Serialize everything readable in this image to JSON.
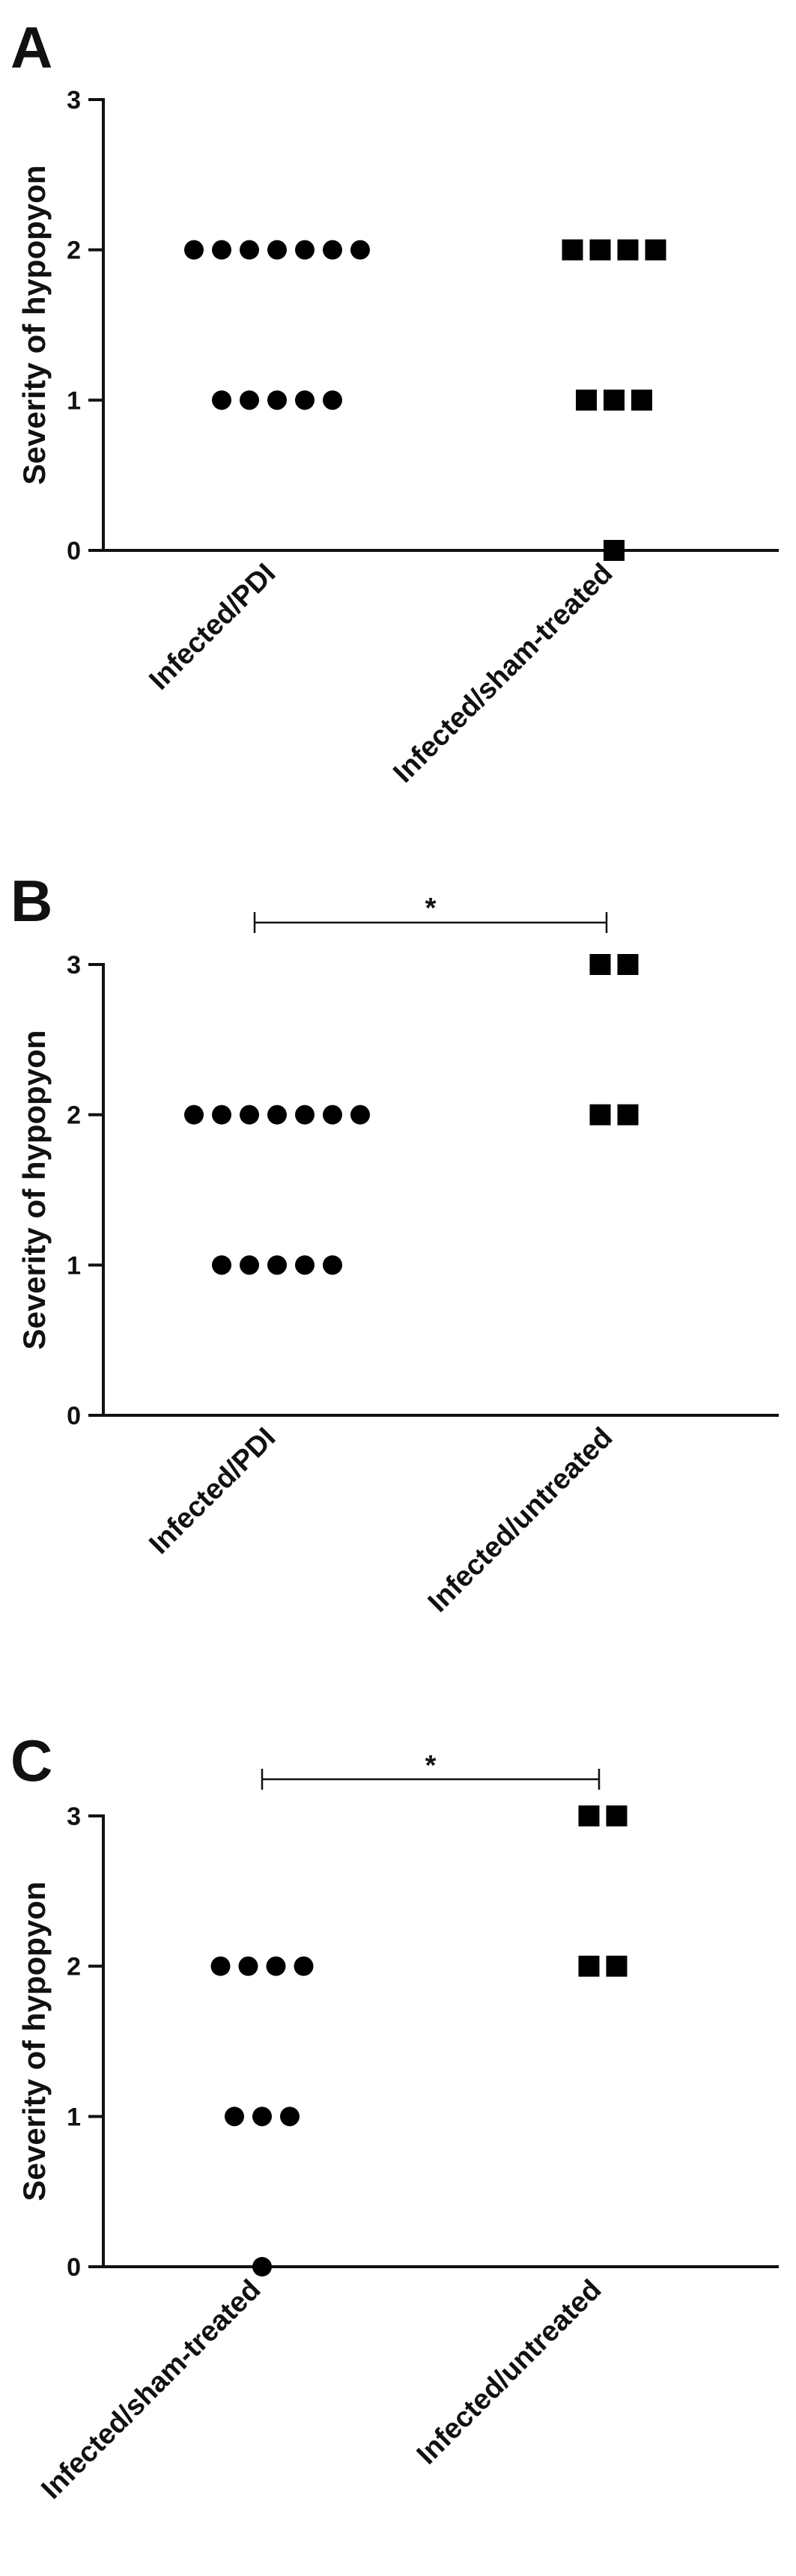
{
  "chart_data": [
    {
      "type": "scatter",
      "panel": "A",
      "ylabel": "Severity of hypopyon",
      "ylim": [
        0,
        3
      ],
      "yticks": [
        "0",
        "1",
        "2",
        "3"
      ],
      "categories": [
        "Infected/PDI",
        "Infected/sham-treated"
      ],
      "markers": [
        "circle",
        "square"
      ],
      "groups": [
        [
          2,
          2,
          2,
          2,
          2,
          2,
          2,
          1,
          1,
          1,
          1,
          1
        ],
        [
          2,
          2,
          2,
          2,
          1,
          1,
          1,
          0
        ]
      ],
      "significance": null
    },
    {
      "type": "scatter",
      "panel": "B",
      "ylabel": "Severity of hypopyon",
      "ylim": [
        0,
        3
      ],
      "yticks": [
        "0",
        "1",
        "2",
        "3"
      ],
      "categories": [
        "Infected/PDI",
        "Infected/untreated"
      ],
      "markers": [
        "circle",
        "square"
      ],
      "groups": [
        [
          2,
          2,
          2,
          2,
          2,
          2,
          2,
          1,
          1,
          1,
          1,
          1
        ],
        [
          3,
          3,
          2,
          2
        ]
      ],
      "significance": "*"
    },
    {
      "type": "scatter",
      "panel": "C",
      "ylabel": "Severity of hypopyon",
      "ylim": [
        0,
        3
      ],
      "yticks": [
        "0",
        "1",
        "2",
        "3"
      ],
      "categories": [
        "Infected/sham-treated",
        "Infected/untreated"
      ],
      "markers": [
        "circle",
        "square"
      ],
      "groups": [
        [
          2,
          2,
          2,
          2,
          1,
          1,
          1,
          0
        ],
        [
          3,
          3,
          2,
          2
        ]
      ],
      "significance": "*"
    }
  ]
}
